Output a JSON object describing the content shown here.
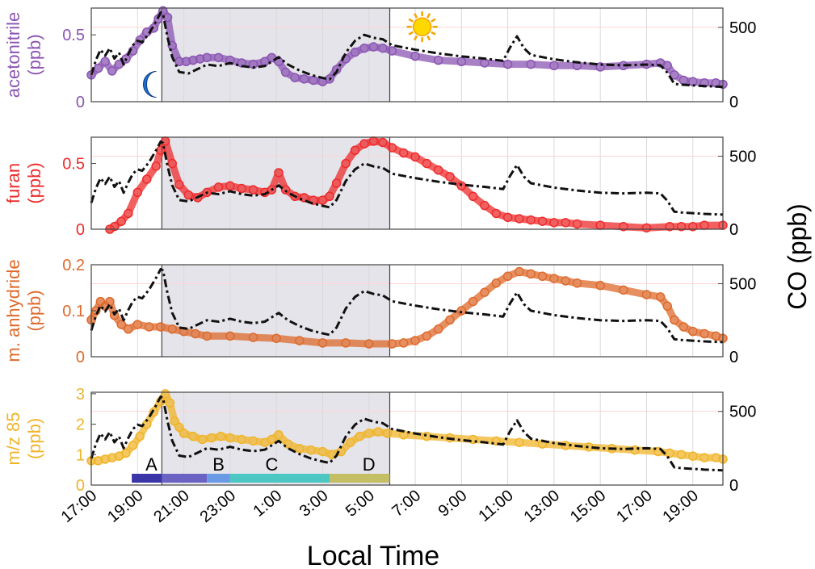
{
  "figure": {
    "xlabel": "Local Time",
    "right_ylabel": "CO (ppb)"
  },
  "chart_data": {
    "type": "line",
    "x_unit": "hours since 17:00 local time",
    "xlim": [
      0,
      27.3
    ],
    "x_ticks": [
      {
        "x": 0,
        "label": "17:00"
      },
      {
        "x": 2,
        "label": "19:00"
      },
      {
        "x": 4,
        "label": "21:00"
      },
      {
        "x": 6,
        "label": "23:00"
      },
      {
        "x": 8,
        "label": "1:00"
      },
      {
        "x": 10,
        "label": "3:00"
      },
      {
        "x": 12,
        "label": "5:00"
      },
      {
        "x": 14,
        "label": "7:00"
      },
      {
        "x": 16,
        "label": "9:00"
      },
      {
        "x": 18,
        "label": "11:00"
      },
      {
        "x": 20,
        "label": "13:00"
      },
      {
        "x": 22,
        "label": "15:00"
      },
      {
        "x": 24,
        "label": "17:00"
      },
      {
        "x": 26,
        "label": "19:00"
      }
    ],
    "night_shading": [
      3.05,
      12.9
    ],
    "grid": true,
    "co_series": {
      "name": "CO",
      "x": [
        0,
        0.2,
        0.4,
        0.6,
        0.8,
        1.0,
        1.2,
        1.4,
        1.6,
        1.8,
        2.0,
        2.2,
        2.5,
        2.8,
        3.0,
        3.1,
        3.3,
        3.5,
        3.8,
        4.2,
        4.6,
        5.0,
        5.5,
        6.0,
        6.5,
        7.0,
        7.5,
        7.8,
        8.1,
        8.5,
        9.0,
        9.5,
        10.0,
        10.3,
        10.6,
        11.0,
        11.4,
        11.8,
        12.2,
        12.6,
        13.0,
        14.0,
        15.0,
        16.0,
        17.0,
        17.8,
        18.1,
        18.4,
        18.7,
        19.0,
        20.0,
        21.0,
        22.0,
        23.0,
        24.0,
        24.6,
        24.9,
        25.2,
        25.5,
        26.0,
        26.5,
        27.3
      ],
      "y": [
        180,
        280,
        350,
        310,
        360,
        290,
        330,
        250,
        320,
        380,
        410,
        400,
        460,
        540,
        600,
        590,
        430,
        300,
        200,
        190,
        220,
        250,
        240,
        260,
        240,
        230,
        240,
        270,
        300,
        250,
        210,
        180,
        160,
        150,
        200,
        330,
        410,
        450,
        430,
        420,
        380,
        350,
        325,
        305,
        290,
        275,
        365,
        440,
        360,
        315,
        285,
        265,
        250,
        245,
        250,
        245,
        195,
        120,
        115,
        110,
        105,
        100
      ]
    },
    "panels": [
      {
        "name": "acetonitrile",
        "ylabel": "acetonitrile (ppb)",
        "color": "#8b55b3",
        "left_ticks": [
          0,
          0.5
        ],
        "left_ylim": [
          0,
          0.7
        ],
        "right_ticks": [
          0,
          500
        ],
        "right_ylim": [
          0,
          630
        ],
        "x": [
          0,
          0.3,
          0.6,
          0.9,
          1.2,
          1.5,
          1.8,
          2.1,
          2.4,
          2.7,
          2.9,
          3.1,
          3.3,
          3.5,
          3.8,
          4.1,
          4.4,
          4.7,
          5.0,
          5.5,
          6.0,
          6.5,
          7.0,
          7.5,
          7.8,
          8.1,
          8.4,
          8.8,
          9.2,
          9.6,
          10.0,
          10.3,
          10.6,
          11.0,
          11.4,
          11.8,
          12.2,
          12.6,
          13.0,
          14.0,
          15.0,
          16.0,
          17.0,
          18.0,
          19.0,
          20.0,
          21.0,
          22.0,
          23.0,
          24.0,
          24.6,
          24.9,
          25.2,
          25.6,
          26.0,
          26.5,
          27.0,
          27.3
        ],
        "y": [
          0.2,
          0.25,
          0.3,
          0.23,
          0.28,
          0.32,
          0.38,
          0.46,
          0.52,
          0.55,
          0.62,
          0.68,
          0.63,
          0.42,
          0.3,
          0.3,
          0.31,
          0.32,
          0.33,
          0.33,
          0.31,
          0.29,
          0.28,
          0.3,
          0.33,
          0.3,
          0.22,
          0.18,
          0.17,
          0.16,
          0.15,
          0.17,
          0.24,
          0.32,
          0.37,
          0.4,
          0.41,
          0.4,
          0.38,
          0.34,
          0.31,
          0.3,
          0.29,
          0.28,
          0.28,
          0.27,
          0.27,
          0.26,
          0.27,
          0.28,
          0.29,
          0.27,
          0.2,
          0.16,
          0.15,
          0.14,
          0.14,
          0.13
        ]
      },
      {
        "name": "furan",
        "ylabel": "furan (ppb)",
        "color": "#ee2c2c",
        "left_ticks": [
          0,
          0.5
        ],
        "left_ylim": [
          0,
          0.7
        ],
        "right_ticks": [
          0,
          500
        ],
        "right_ylim": [
          0,
          630
        ],
        "x": [
          0.8,
          1.0,
          1.3,
          1.6,
          2.0,
          2.4,
          2.8,
          3.0,
          3.2,
          3.5,
          3.8,
          4.2,
          4.6,
          5.0,
          5.5,
          6.0,
          6.5,
          7.0,
          7.5,
          7.8,
          8.1,
          8.4,
          8.8,
          9.2,
          9.6,
          10.0,
          10.3,
          10.6,
          11.0,
          11.4,
          11.8,
          12.2,
          12.6,
          13.0,
          13.5,
          14.0,
          14.5,
          15.0,
          15.5,
          16.0,
          16.5,
          17.0,
          17.5,
          18.0,
          18.5,
          19.0,
          19.5,
          20.0,
          20.5,
          21.0,
          22.0,
          23.0,
          24.0,
          25.0,
          25.5,
          26.0,
          26.5,
          27.3
        ],
        "y": [
          0.0,
          0.02,
          0.06,
          0.12,
          0.28,
          0.38,
          0.48,
          0.6,
          0.67,
          0.5,
          0.34,
          0.26,
          0.24,
          0.28,
          0.32,
          0.33,
          0.31,
          0.3,
          0.28,
          0.3,
          0.43,
          0.3,
          0.25,
          0.24,
          0.22,
          0.22,
          0.25,
          0.35,
          0.5,
          0.6,
          0.65,
          0.67,
          0.66,
          0.62,
          0.58,
          0.55,
          0.5,
          0.45,
          0.4,
          0.33,
          0.25,
          0.18,
          0.12,
          0.09,
          0.08,
          0.07,
          0.06,
          0.05,
          0.05,
          0.04,
          0.03,
          0.02,
          0.01,
          0.02,
          0.02,
          0.02,
          0.03,
          0.03
        ]
      },
      {
        "name": "m. anhydride",
        "ylabel": "m. anhydride (ppb)",
        "color": "#de6a2c",
        "left_ticks": [
          0,
          0.1,
          0.2
        ],
        "left_ylim": [
          0,
          0.2
        ],
        "right_ticks": [
          0,
          500
        ],
        "right_ylim": [
          0,
          630
        ],
        "x": [
          0,
          0.2,
          0.4,
          0.6,
          0.8,
          1.0,
          1.3,
          1.6,
          2.0,
          2.5,
          3.0,
          3.5,
          4.0,
          4.5,
          5.0,
          6.0,
          7.0,
          8.0,
          9.0,
          10.0,
          11.0,
          12.0,
          13.0,
          13.5,
          14.0,
          14.5,
          15.0,
          15.5,
          16.0,
          16.5,
          17.0,
          17.5,
          18.0,
          18.5,
          19.0,
          19.5,
          20.0,
          20.5,
          21.0,
          22.0,
          23.0,
          24.0,
          24.6,
          24.9,
          25.2,
          25.6,
          26.0,
          26.5,
          27.0,
          27.3
        ],
        "y": [
          0.08,
          0.1,
          0.12,
          0.11,
          0.12,
          0.09,
          0.07,
          0.06,
          0.07,
          0.065,
          0.065,
          0.06,
          0.055,
          0.05,
          0.045,
          0.045,
          0.042,
          0.04,
          0.035,
          0.03,
          0.03,
          0.028,
          0.028,
          0.03,
          0.035,
          0.045,
          0.06,
          0.08,
          0.1,
          0.12,
          0.14,
          0.16,
          0.175,
          0.185,
          0.18,
          0.175,
          0.17,
          0.165,
          0.16,
          0.155,
          0.145,
          0.135,
          0.13,
          0.11,
          0.08,
          0.065,
          0.055,
          0.05,
          0.045,
          0.04
        ]
      },
      {
        "name": "m/z 85",
        "ylabel": "m/z 85 (ppb)",
        "color": "#f0b429",
        "left_ticks": [
          0,
          1,
          2,
          3
        ],
        "left_ylim": [
          0,
          3.05
        ],
        "right_ticks": [
          0,
          500
        ],
        "right_ylim": [
          0,
          630
        ],
        "x": [
          0,
          0.3,
          0.6,
          0.9,
          1.2,
          1.5,
          1.8,
          2.1,
          2.4,
          2.7,
          3.0,
          3.2,
          3.4,
          3.6,
          3.8,
          4.0,
          4.4,
          4.8,
          5.2,
          5.6,
          6.0,
          6.5,
          7.0,
          7.5,
          7.8,
          8.1,
          8.5,
          9.0,
          9.5,
          10.0,
          10.4,
          10.8,
          11.2,
          11.6,
          12.0,
          12.4,
          12.8,
          13.5,
          14.5,
          15.5,
          16.5,
          17.5,
          18.5,
          19.5,
          20.5,
          21.5,
          22.5,
          23.5,
          24.5,
          25.0,
          25.5,
          26.0,
          26.5,
          27.0,
          27.3
        ],
        "y": [
          0.8,
          0.8,
          0.85,
          0.9,
          0.95,
          1.05,
          1.3,
          1.6,
          2.0,
          2.4,
          2.75,
          3.0,
          2.7,
          2.1,
          1.9,
          1.7,
          1.6,
          1.5,
          1.55,
          1.6,
          1.55,
          1.5,
          1.45,
          1.4,
          1.5,
          1.65,
          1.35,
          1.2,
          1.15,
          1.1,
          1.0,
          1.1,
          1.4,
          1.6,
          1.7,
          1.75,
          1.7,
          1.65,
          1.6,
          1.55,
          1.5,
          1.45,
          1.4,
          1.35,
          1.3,
          1.25,
          1.2,
          1.15,
          1.1,
          1.05,
          1.0,
          0.95,
          0.9,
          0.9,
          0.85
        ]
      }
    ],
    "period_bars": [
      {
        "label": "A",
        "x0": 1.75,
        "x1": 3.05,
        "color": "#3a36a8"
      },
      {
        "label": "B",
        "x0": 3.05,
        "x1": 5.0,
        "color": "#6b62c4"
      },
      {
        "label": "B",
        "x0": 5.0,
        "x1": 6.0,
        "color": "#6a9ae6"
      },
      {
        "label": "C",
        "x0": 6.0,
        "x1": 10.3,
        "color": "#4cc7c3"
      },
      {
        "label": "D",
        "x0": 10.3,
        "x1": 12.9,
        "color": "#c4be65"
      }
    ],
    "period_labels": [
      {
        "label": "A",
        "x": 2.6
      },
      {
        "label": "B",
        "x": 5.5
      },
      {
        "label": "C",
        "x": 7.8
      },
      {
        "label": "D",
        "x": 12.0
      }
    ],
    "icons": [
      {
        "name": "moon-icon",
        "panel": 0,
        "x": 2.6,
        "y": 0.13,
        "color": "#1f6fd1"
      },
      {
        "name": "sun-icon",
        "panel": 0,
        "x": 14.3,
        "y": 0.56,
        "color": "#ffd800"
      }
    ]
  }
}
